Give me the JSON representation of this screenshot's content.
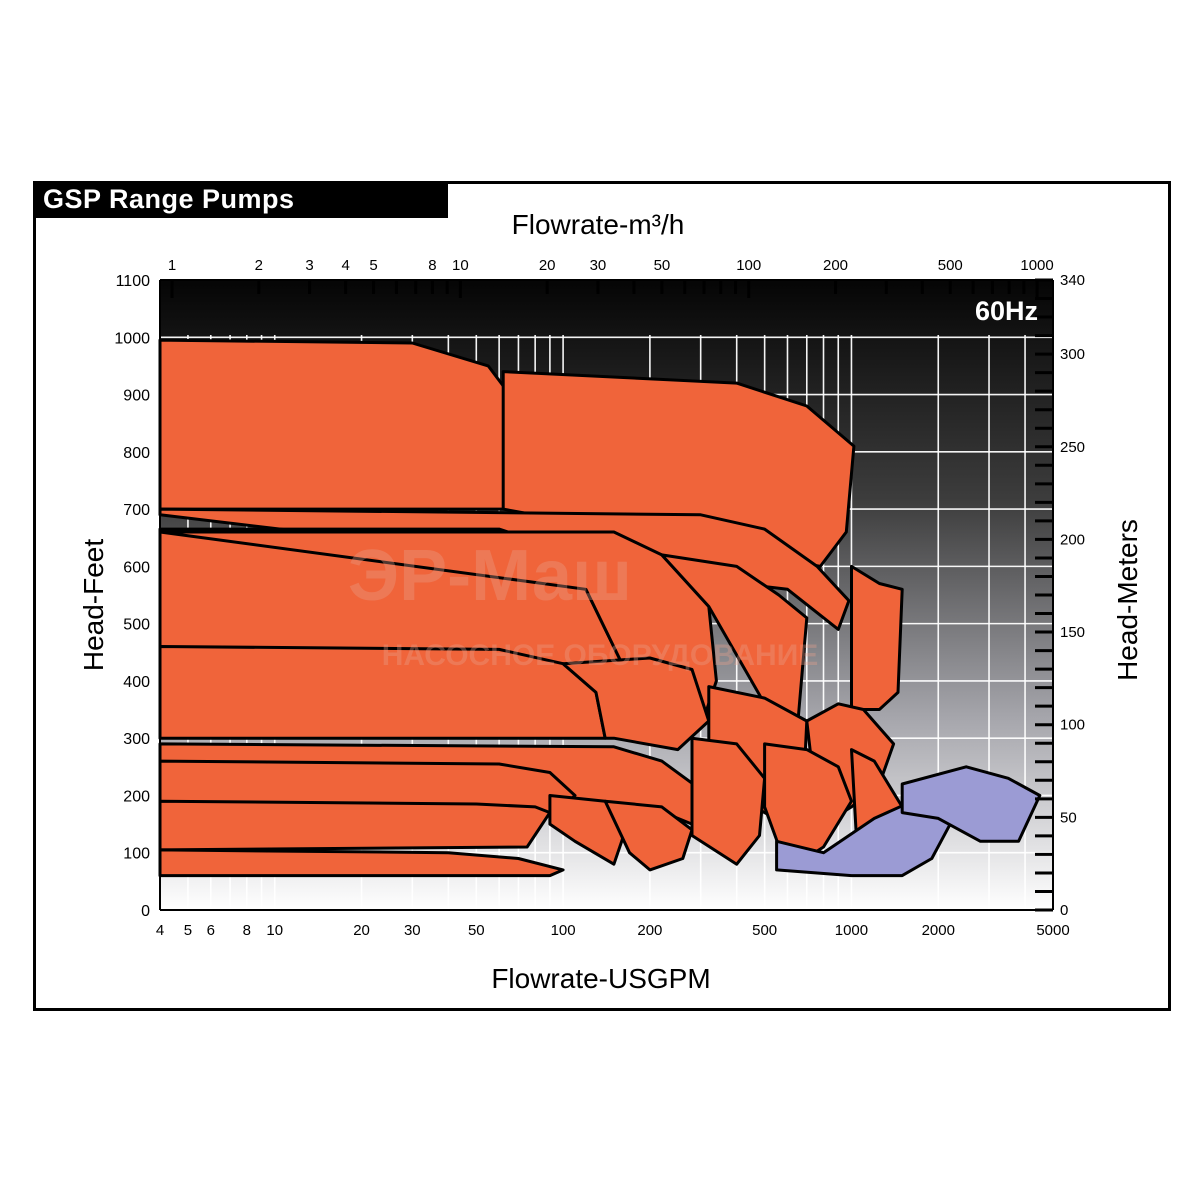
{
  "title": "GSP Range Pumps",
  "frequency_badge": "60Hz",
  "watermark": {
    "line1": "ЭР-Маш",
    "line2": "НАСОСНОЕ ОБОРУДОВАНИЕ"
  },
  "colors": {
    "pump_fill": "#f0643a",
    "large_pump_fill": "#9b9bd4",
    "outline": "#000000",
    "grid": "#ffffff"
  },
  "chart_data": {
    "type": "area",
    "title": "GSP Range Pumps",
    "x_scale": "log",
    "y_scale": "linear",
    "xlabel": "Flowrate-USGPM",
    "x2label": "Flowrate-m³/h",
    "ylabel": "Head-Feet",
    "y2label": "Head-Meters",
    "xlim": [
      4,
      5000
    ],
    "ylim": [
      0,
      1100
    ],
    "y2lim": [
      0,
      340
    ],
    "x_ticks": [
      4,
      5,
      6,
      8,
      10,
      20,
      30,
      50,
      100,
      200,
      500,
      1000,
      2000,
      5000
    ],
    "x2_ticks": [
      1,
      2,
      3,
      4,
      5,
      8,
      10,
      20,
      30,
      50,
      100,
      200,
      500,
      1000
    ],
    "y_ticks": [
      0,
      100,
      200,
      300,
      400,
      500,
      600,
      700,
      800,
      900,
      1000,
      1100
    ],
    "y2_ticks": [
      0,
      50,
      100,
      150,
      200,
      250,
      300,
      340
    ],
    "grid": true,
    "regions": [
      {
        "fill": "orange",
        "points": [
          [
            4,
            995
          ],
          [
            30,
            990
          ],
          [
            55,
            950
          ],
          [
            70,
            880
          ],
          [
            62,
            700
          ],
          [
            4,
            700
          ]
        ]
      },
      {
        "fill": "orange",
        "points": [
          [
            62,
            940
          ],
          [
            400,
            920
          ],
          [
            700,
            880
          ],
          [
            1020,
            810
          ],
          [
            960,
            660
          ],
          [
            780,
            600
          ],
          [
            62,
            700
          ]
        ]
      },
      {
        "fill": "orange",
        "points": [
          [
            4,
            700
          ],
          [
            300,
            690
          ],
          [
            500,
            665
          ],
          [
            760,
            600
          ],
          [
            980,
            540
          ],
          [
            900,
            490
          ],
          [
            600,
            560
          ],
          [
            4,
            690
          ]
        ]
      },
      {
        "fill": "orange",
        "points": [
          [
            4,
            665
          ],
          [
            60,
            665
          ],
          [
            85,
            640
          ],
          [
            120,
            560
          ],
          [
            160,
            430
          ],
          [
            140,
            420
          ],
          [
            120,
            430
          ],
          [
            95,
            410
          ],
          [
            4,
            410
          ]
        ]
      },
      {
        "fill": "orange",
        "points": [
          [
            4,
            660
          ],
          [
            150,
            660
          ],
          [
            220,
            620
          ],
          [
            320,
            530
          ],
          [
            340,
            400
          ],
          [
            310,
            340
          ],
          [
            280,
            390
          ],
          [
            200,
            410
          ],
          [
            160,
            430
          ],
          [
            120,
            560
          ]
        ]
      },
      {
        "fill": "orange",
        "points": [
          [
            220,
            620
          ],
          [
            400,
            600
          ],
          [
            560,
            550
          ],
          [
            700,
            510
          ],
          [
            650,
            320
          ],
          [
            580,
            280
          ],
          [
            500,
            360
          ],
          [
            320,
            530
          ]
        ]
      },
      {
        "fill": "orange",
        "points": [
          [
            1000,
            600
          ],
          [
            1250,
            570
          ],
          [
            1500,
            560
          ],
          [
            1450,
            380
          ],
          [
            1250,
            350
          ],
          [
            1000,
            350
          ]
        ]
      },
      {
        "fill": "orange",
        "points": [
          [
            4,
            460
          ],
          [
            60,
            455
          ],
          [
            100,
            430
          ],
          [
            130,
            380
          ],
          [
            140,
            300
          ],
          [
            4,
            300
          ]
        ]
      },
      {
        "fill": "orange",
        "points": [
          [
            100,
            430
          ],
          [
            200,
            440
          ],
          [
            280,
            420
          ],
          [
            320,
            330
          ],
          [
            250,
            280
          ],
          [
            150,
            300
          ],
          [
            140,
            300
          ],
          [
            130,
            380
          ]
        ]
      },
      {
        "fill": "orange",
        "points": [
          [
            4,
            290
          ],
          [
            150,
            285
          ],
          [
            220,
            260
          ],
          [
            320,
            200
          ],
          [
            280,
            150
          ],
          [
            200,
            180
          ],
          [
            4,
            180
          ]
        ]
      },
      {
        "fill": "orange",
        "points": [
          [
            320,
            390
          ],
          [
            500,
            370
          ],
          [
            700,
            330
          ],
          [
            680,
            200
          ],
          [
            600,
            150
          ],
          [
            500,
            170
          ],
          [
            400,
            200
          ],
          [
            320,
            200
          ]
        ]
      },
      {
        "fill": "orange",
        "points": [
          [
            700,
            330
          ],
          [
            900,
            360
          ],
          [
            1100,
            350
          ],
          [
            1400,
            290
          ],
          [
            1250,
            220
          ],
          [
            1000,
            180
          ],
          [
            800,
            150
          ],
          [
            750,
            200
          ]
        ]
      },
      {
        "fill": "orange",
        "points": [
          [
            4,
            260
          ],
          [
            60,
            255
          ],
          [
            90,
            240
          ],
          [
            110,
            200
          ],
          [
            95,
            170
          ],
          [
            4,
            170
          ]
        ]
      },
      {
        "fill": "orange",
        "points": [
          [
            4,
            190
          ],
          [
            50,
            185
          ],
          [
            80,
            180
          ],
          [
            90,
            170
          ],
          [
            75,
            110
          ],
          [
            4,
            105
          ]
        ]
      },
      {
        "fill": "orange",
        "points": [
          [
            90,
            200
          ],
          [
            140,
            190
          ],
          [
            170,
            160
          ],
          [
            150,
            80
          ],
          [
            110,
            120
          ],
          [
            90,
            150
          ]
        ]
      },
      {
        "fill": "orange",
        "points": [
          [
            140,
            190
          ],
          [
            220,
            180
          ],
          [
            280,
            140
          ],
          [
            260,
            90
          ],
          [
            200,
            70
          ],
          [
            170,
            100
          ]
        ]
      },
      {
        "fill": "orange",
        "points": [
          [
            280,
            300
          ],
          [
            400,
            290
          ],
          [
            500,
            230
          ],
          [
            480,
            130
          ],
          [
            400,
            80
          ],
          [
            280,
            130
          ]
        ]
      },
      {
        "fill": "orange",
        "points": [
          [
            500,
            290
          ],
          [
            700,
            280
          ],
          [
            900,
            250
          ],
          [
            1000,
            190
          ],
          [
            800,
            110
          ],
          [
            600,
            70
          ],
          [
            500,
            180
          ]
        ]
      },
      {
        "fill": "orange",
        "points": [
          [
            1000,
            280
          ],
          [
            1200,
            260
          ],
          [
            1500,
            180
          ],
          [
            1300,
            120
          ],
          [
            1050,
            90
          ]
        ]
      },
      {
        "fill": "orange",
        "points": [
          [
            4,
            105
          ],
          [
            40,
            100
          ],
          [
            70,
            90
          ],
          [
            100,
            70
          ],
          [
            90,
            60
          ],
          [
            4,
            60
          ]
        ]
      },
      {
        "fill": "purple",
        "points": [
          [
            550,
            120
          ],
          [
            800,
            100
          ],
          [
            1200,
            160
          ],
          [
            1800,
            200
          ],
          [
            2200,
            150
          ],
          [
            1900,
            90
          ],
          [
            1500,
            60
          ],
          [
            1000,
            60
          ],
          [
            550,
            70
          ]
        ]
      },
      {
        "fill": "purple",
        "points": [
          [
            1500,
            220
          ],
          [
            2500,
            250
          ],
          [
            3500,
            230
          ],
          [
            4500,
            200
          ],
          [
            3800,
            120
          ],
          [
            2800,
            120
          ],
          [
            2000,
            160
          ],
          [
            1500,
            170
          ]
        ]
      }
    ]
  }
}
